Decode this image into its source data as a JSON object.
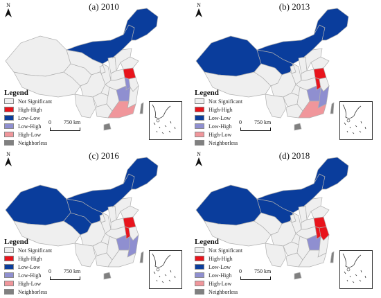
{
  "colors": {
    "not_significant": "#efefef",
    "high_high": "#e8141c",
    "low_low": "#0a3d9c",
    "low_high": "#8f8fd0",
    "high_low": "#f0969b",
    "neighborless": "#808080",
    "border": "#b0b0b0"
  },
  "legend": {
    "title": "Legend",
    "items": [
      {
        "key": "not_significant",
        "label": "Not Significant"
      },
      {
        "key": "high_high",
        "label": "High-High"
      },
      {
        "key": "low_low",
        "label": "Low-Low"
      },
      {
        "key": "low_high",
        "label": "Low-High"
      },
      {
        "key": "high_low",
        "label": "High-Low"
      },
      {
        "key": "neighborless",
        "label": "Neighborless"
      }
    ]
  },
  "scalebar": {
    "zero": "0",
    "distance": "750 km"
  },
  "north_label": "N",
  "panels": [
    {
      "title": "(a) 2010",
      "regions": {
        "northeast": "low_low",
        "inner_mongolia": "low_low",
        "xinjiang": "not_significant",
        "tibet": "not_significant",
        "qinghai": "not_significant",
        "gansu": "not_significant",
        "ningxia": "not_significant",
        "shaanxi": "not_significant",
        "shanxi": "not_significant",
        "hebei": "not_significant",
        "shandong": "not_significant",
        "henan": "not_significant",
        "sichuan": "not_significant",
        "chongqing": "not_significant",
        "hubei": "not_significant",
        "yunnan": "not_significant",
        "guizhou": "not_significant",
        "guangxi": "not_significant",
        "jiangsu": "high_high",
        "anhui": "low_high",
        "zhejiang": "not_significant",
        "jiangxi": "low_high",
        "hunan": "not_significant",
        "fujian": "not_significant",
        "guangdong": "high_low",
        "hainan": "neighborless",
        "taiwan": "neighborless"
      }
    },
    {
      "title": "(b) 2013",
      "regions": {
        "northeast": "low_low",
        "inner_mongolia": "low_low",
        "xinjiang": "low_low",
        "tibet": "not_significant",
        "qinghai": "not_significant",
        "gansu": "low_low",
        "ningxia": "not_significant",
        "shaanxi": "not_significant",
        "shanxi": "not_significant",
        "hebei": "not_significant",
        "shandong": "not_significant",
        "henan": "not_significant",
        "sichuan": "not_significant",
        "chongqing": "not_significant",
        "hubei": "not_significant",
        "yunnan": "not_significant",
        "guizhou": "not_significant",
        "guangxi": "not_significant",
        "jiangsu": "high_high",
        "anhui": "high_high",
        "zhejiang": "not_significant",
        "jiangxi": "low_high",
        "hunan": "not_significant",
        "fujian": "low_high",
        "guangdong": "high_low",
        "hainan": "neighborless",
        "taiwan": "neighborless"
      }
    },
    {
      "title": "(c) 2016",
      "regions": {
        "northeast": "low_low",
        "inner_mongolia": "low_low",
        "xinjiang": "low_low",
        "tibet": "not_significant",
        "qinghai": "low_low",
        "gansu": "low_low",
        "ningxia": "not_significant",
        "shaanxi": "not_significant",
        "shanxi": "not_significant",
        "hebei": "not_significant",
        "shandong": "not_significant",
        "henan": "not_significant",
        "sichuan": "not_significant",
        "chongqing": "not_significant",
        "hubei": "not_significant",
        "yunnan": "not_significant",
        "guizhou": "not_significant",
        "guangxi": "not_significant",
        "jiangsu": "high_high",
        "anhui": "high_high",
        "zhejiang": "not_significant",
        "jiangxi": "low_high",
        "hunan": "not_significant",
        "fujian": "low_high",
        "guangdong": "not_significant",
        "hainan": "neighborless",
        "taiwan": "neighborless"
      }
    },
    {
      "title": "(d) 2018",
      "regions": {
        "northeast": "low_low",
        "inner_mongolia": "low_low",
        "xinjiang": "low_low",
        "tibet": "not_significant",
        "qinghai": "not_significant",
        "gansu": "low_low",
        "ningxia": "not_significant",
        "shaanxi": "not_significant",
        "shanxi": "not_significant",
        "hebei": "not_significant",
        "shandong": "not_significant",
        "henan": "not_significant",
        "sichuan": "not_significant",
        "chongqing": "not_significant",
        "hubei": "not_significant",
        "yunnan": "not_significant",
        "guizhou": "not_significant",
        "guangxi": "not_significant",
        "jiangsu": "high_high",
        "anhui": "high_high",
        "zhejiang": "high_high",
        "jiangxi": "low_high",
        "hunan": "not_significant",
        "fujian": "not_significant",
        "guangdong": "not_significant",
        "hainan": "neighborless",
        "taiwan": "neighborless"
      }
    }
  ]
}
